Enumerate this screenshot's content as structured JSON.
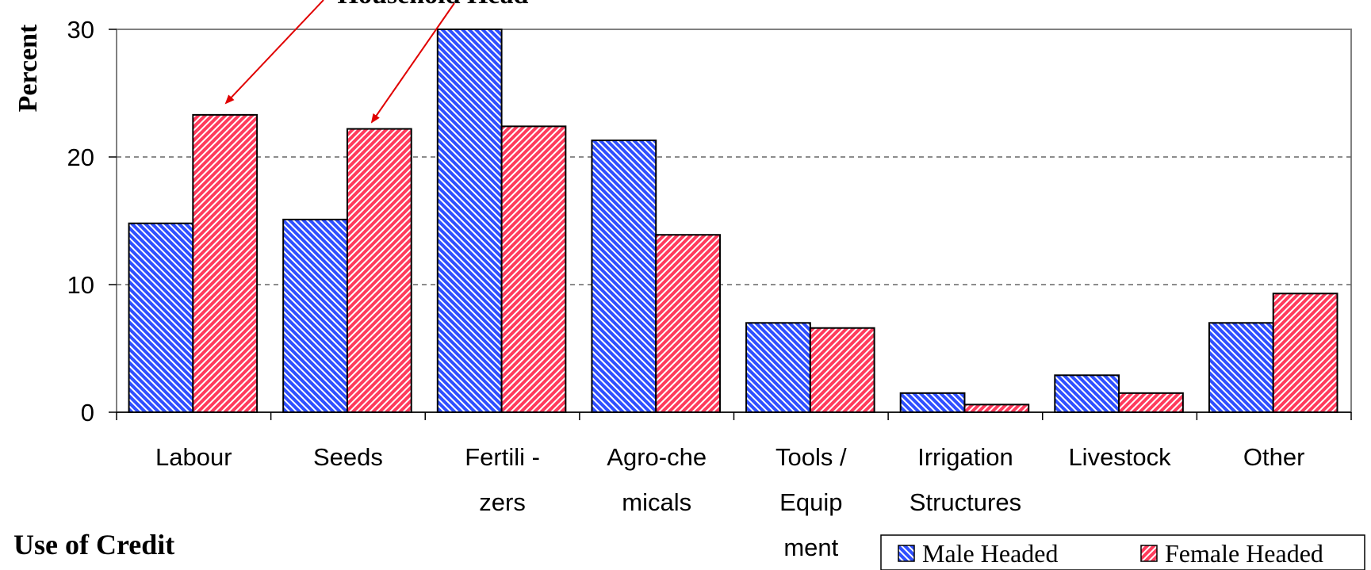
{
  "chart_data": {
    "type": "bar",
    "annotation": "Household Head",
    "y_label": "Percent",
    "x_label": "Use of Credit",
    "categories": [
      [
        "Labour"
      ],
      [
        "Seeds"
      ],
      [
        "Fertili -",
        "zers"
      ],
      [
        "Agro-che",
        "micals"
      ],
      [
        "Tools /",
        "Equip",
        "ment"
      ],
      [
        "Irrigation",
        "Structures"
      ],
      [
        "Livestock"
      ],
      [
        "Other"
      ]
    ],
    "series": [
      {
        "name": "Male Headed",
        "color": "#2f4fff",
        "values": [
          14.8,
          15.1,
          30,
          21.3,
          7.0,
          1.5,
          2.9,
          7.0
        ]
      },
      {
        "name": "Female Headed",
        "color": "#ff3b5c",
        "values": [
          23.3,
          22.2,
          22.4,
          13.9,
          6.6,
          0.6,
          1.5,
          9.3
        ]
      }
    ],
    "ylim": [
      0,
      30
    ],
    "yticks": [
      0,
      10,
      20,
      30
    ],
    "grid": true,
    "legend": "bottom-right"
  }
}
